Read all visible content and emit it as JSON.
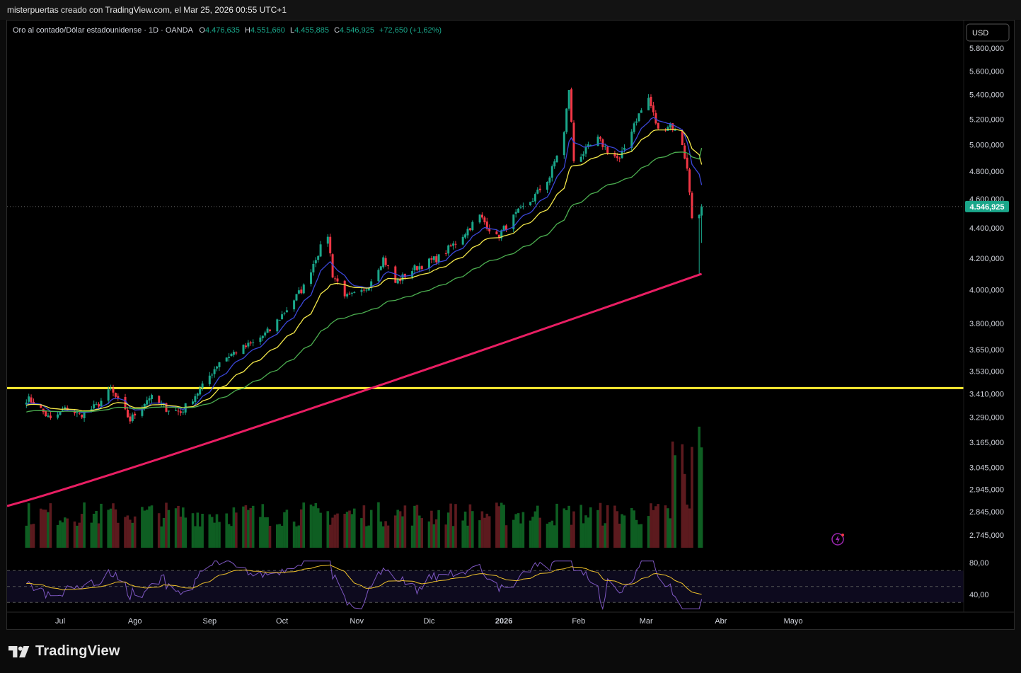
{
  "header": {
    "caption": "misterpuertas creado con TradingView.com, el Mar 25, 2026 00:55 UTC+1"
  },
  "legend": {
    "symbol": "Oro al contado/Dólar estadounidense · 1D · OANDA",
    "o_label": "O",
    "o_value": "4.476,635",
    "h_label": "H",
    "h_value": "4.551,660",
    "l_label": "L",
    "l_value": "4.455,885",
    "c_label": "C",
    "c_value": "4.546,925",
    "change": "+72,650 (+1,62%)"
  },
  "currency_button": "USD",
  "footer": {
    "brand": "TradingView",
    "logo_icon": "tradingview-logo-icon"
  },
  "colors": {
    "up": "#1aa68a",
    "down": "#f23645",
    "vol_up": "#0e5e22",
    "vol_down": "#5c1a1e",
    "ema_fast": "#3b47d9",
    "ema_mid": "#f5e94a",
    "ema_slow": "#4caf50",
    "ema_long": "#e91e63",
    "support": "#ffee33",
    "rsi": "#7e57c2",
    "rsi_ma": "#f0c22b",
    "price_tag": "#1aa68a"
  },
  "chart_data": {
    "type": "candlestick",
    "title": "Oro al contado/Dólar estadounidense · 1D · OANDA",
    "price_axis": {
      "scale": "log",
      "ticks": [
        "5.800,000",
        "5.600,000",
        "5.400,000",
        "5.200,000",
        "5.000,000",
        "4.800,000",
        "4.600,000",
        "4.400,000",
        "4.200,000",
        "4.000,000",
        "3.800,000",
        "3.650,000",
        "3.530,000",
        "3.410,000",
        "3.290,000",
        "3.165,000",
        "3.045,000",
        "2.945,000",
        "2.845,000",
        "2.745,000"
      ],
      "tick_values": [
        5800,
        5600,
        5400,
        5200,
        5000,
        4800,
        4600,
        4400,
        4200,
        4000,
        3800,
        3650,
        3530,
        3410,
        3290,
        3165,
        3045,
        2945,
        2845,
        2745
      ],
      "last_price_label": "4.546,925",
      "last_price": 4546.925
    },
    "time_axis": {
      "labels": [
        "Jul",
        "Ago",
        "Sep",
        "Oct",
        "Nov",
        "Dic",
        "2026",
        "Feb",
        "Mar",
        "Abr",
        "Mayo"
      ],
      "label_dates": [
        "2025-07-01",
        "2025-08-01",
        "2025-09-01",
        "2025-10-01",
        "2025-11-01",
        "2025-12-01",
        "2026-01-01",
        "2026-02-01",
        "2026-03-01",
        "2026-04-01",
        "2026-05-01"
      ]
    },
    "anchors": [
      {
        "date": "2025-06-17",
        "close": 3385
      },
      {
        "date": "2025-06-20",
        "close": 3368
      },
      {
        "date": "2025-06-27",
        "close": 3275
      },
      {
        "date": "2025-07-04",
        "close": 3337
      },
      {
        "date": "2025-07-09",
        "close": 3300
      },
      {
        "date": "2025-07-16",
        "close": 3345
      },
      {
        "date": "2025-07-22",
        "close": 3430
      },
      {
        "date": "2025-07-30",
        "close": 3275
      },
      {
        "date": "2025-08-07",
        "close": 3395
      },
      {
        "date": "2025-08-14",
        "close": 3335
      },
      {
        "date": "2025-08-20",
        "close": 3315
      },
      {
        "date": "2025-08-29",
        "close": 3447
      },
      {
        "date": "2025-09-05",
        "close": 3585
      },
      {
        "date": "2025-09-12",
        "close": 3640
      },
      {
        "date": "2025-09-19",
        "close": 3685
      },
      {
        "date": "2025-09-26",
        "close": 3760
      },
      {
        "date": "2025-10-03",
        "close": 3885
      },
      {
        "date": "2025-10-10",
        "close": 4018
      },
      {
        "date": "2025-10-15",
        "close": 4205
      },
      {
        "date": "2025-10-20",
        "close": 4355
      },
      {
        "date": "2025-10-22",
        "close": 4095
      },
      {
        "date": "2025-10-28",
        "close": 3955
      },
      {
        "date": "2025-11-04",
        "close": 3985
      },
      {
        "date": "2025-11-12",
        "close": 4200
      },
      {
        "date": "2025-11-17",
        "close": 4045
      },
      {
        "date": "2025-11-25",
        "close": 4135
      },
      {
        "date": "2025-12-05",
        "close": 4205
      },
      {
        "date": "2025-12-12",
        "close": 4300
      },
      {
        "date": "2025-12-22",
        "close": 4480
      },
      {
        "date": "2025-12-29",
        "close": 4335
      },
      {
        "date": "2026-01-06",
        "close": 4490
      },
      {
        "date": "2026-01-13",
        "close": 4600
      },
      {
        "date": "2026-01-20",
        "close": 4760
      },
      {
        "date": "2026-01-26",
        "close": 5090
      },
      {
        "date": "2026-01-28",
        "close": 5450
      },
      {
        "date": "2026-01-30",
        "close": 4880
      },
      {
        "date": "2026-02-03",
        "close": 4940
      },
      {
        "date": "2026-02-09",
        "close": 5040
      },
      {
        "date": "2026-02-13",
        "close": 4960
      },
      {
        "date": "2026-02-18",
        "close": 4880
      },
      {
        "date": "2026-02-24",
        "close": 5170
      },
      {
        "date": "2026-03-02",
        "close": 5370
      },
      {
        "date": "2026-03-06",
        "close": 5110
      },
      {
        "date": "2026-03-11",
        "close": 5160
      },
      {
        "date": "2026-03-16",
        "close": 5010
      },
      {
        "date": "2026-03-18",
        "close": 4810
      },
      {
        "date": "2026-03-20",
        "close": 4490
      },
      {
        "date": "2026-03-23",
        "close": 4474
      },
      {
        "date": "2026-03-24",
        "close": 4547
      }
    ],
    "moving_averages": [
      {
        "length": 9,
        "color": "#3b47d9",
        "last": 4700
      },
      {
        "length": 20,
        "color": "#f5e94a",
        "last": 4850
      },
      {
        "length": 50,
        "color": "#4caf50",
        "last": 4975
      },
      {
        "length": 200,
        "color": "#e91e63",
        "last": 4100
      }
    ],
    "horizontal_line": 3440,
    "volume": {
      "color_up": "#0e5e22",
      "color_down": "#5c1a1e"
    },
    "rsi": {
      "length": 14,
      "ticks": [
        "80,00",
        "40,00"
      ],
      "tick_values": [
        80,
        40
      ],
      "upper": 70,
      "middle": 50,
      "lower": 30,
      "last": 34
    }
  }
}
